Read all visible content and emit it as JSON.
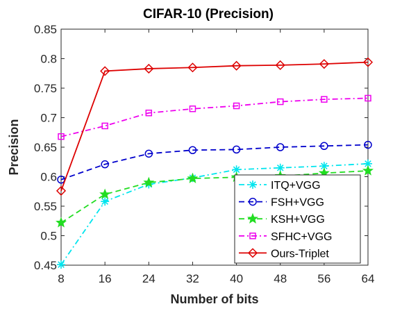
{
  "chart_data": {
    "type": "line",
    "title": "CIFAR-10 (Precision)",
    "xlabel": "Number of bits",
    "ylabel": "Precision",
    "x": [
      8,
      16,
      24,
      32,
      40,
      48,
      56,
      64
    ],
    "x_ticks": [
      "8",
      "16",
      "24",
      "32",
      "40",
      "48",
      "56",
      "64"
    ],
    "y_ticks": [
      "0.45",
      "0.5",
      "0.55",
      "0.6",
      "0.65",
      "0.7",
      "0.75",
      "0.8",
      "0.85"
    ],
    "xlim": [
      8,
      64
    ],
    "ylim": [
      0.45,
      0.85
    ],
    "grid": false,
    "legend_position": "bottom-right",
    "series": [
      {
        "name": "ITQ+VGG",
        "color": "#00e5ee",
        "dash": "dashdot",
        "marker": "asterisk",
        "values": [
          0.451,
          0.558,
          0.587,
          0.598,
          0.612,
          0.615,
          0.618,
          0.622
        ]
      },
      {
        "name": "FSH+VGG",
        "color": "#0000cc",
        "dash": "dashed",
        "marker": "circle",
        "values": [
          0.595,
          0.621,
          0.639,
          0.645,
          0.646,
          0.65,
          0.652,
          0.654
        ]
      },
      {
        "name": "KSH+VGG",
        "color": "#22dd22",
        "dash": "dashed",
        "marker": "star",
        "values": [
          0.522,
          0.57,
          0.59,
          0.597,
          0.599,
          0.601,
          0.606,
          0.61
        ]
      },
      {
        "name": "SFHC+VGG",
        "color": "#ee00ee",
        "dash": "dashdot",
        "marker": "square",
        "values": [
          0.668,
          0.686,
          0.708,
          0.715,
          0.72,
          0.727,
          0.731,
          0.733
        ]
      },
      {
        "name": "Ours-Triplet",
        "color": "#dd0000",
        "dash": "solid",
        "marker": "diamond",
        "values": [
          0.576,
          0.779,
          0.783,
          0.785,
          0.788,
          0.789,
          0.791,
          0.794
        ]
      }
    ]
  }
}
